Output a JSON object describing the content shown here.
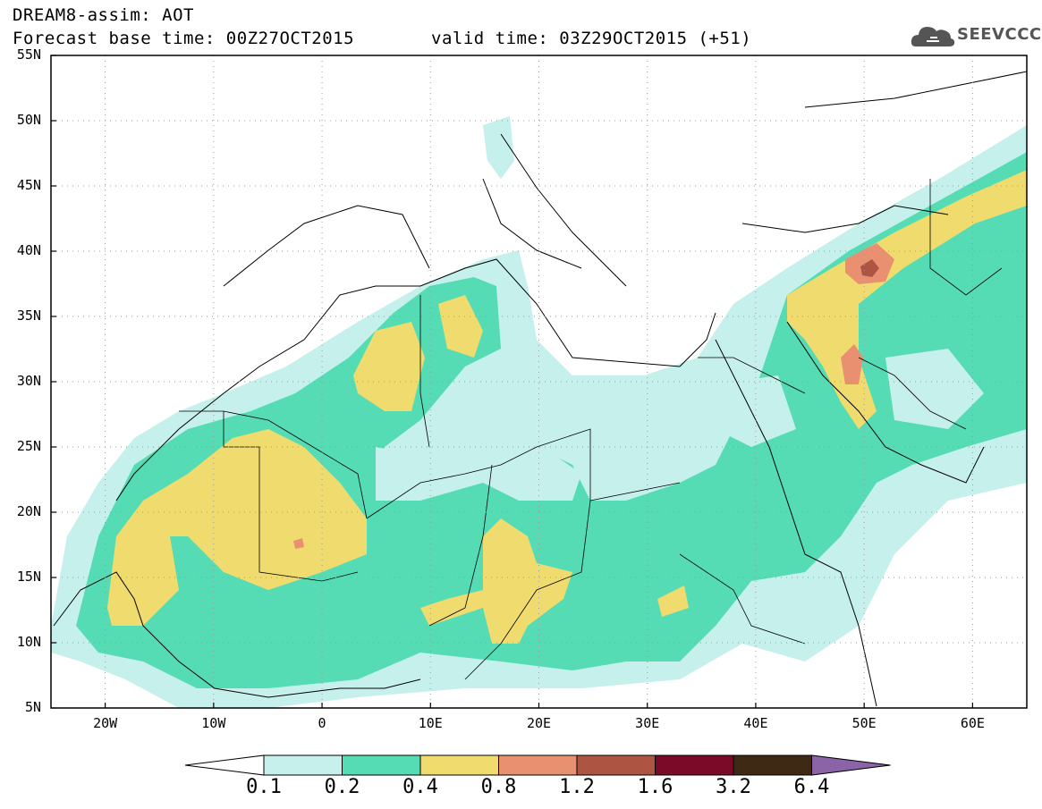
{
  "header": {
    "line1": "DREAM8-assim: AOT",
    "line2": "Forecast base time: 00Z27OCT2015",
    "valid": "valid time: 03Z29OCT2015 (+51)"
  },
  "logo": {
    "name": "SEEVCCC",
    "icon": "cloud-icon"
  },
  "map": {
    "lon_range": [
      -25,
      65
    ],
    "lat_range": [
      5,
      55
    ],
    "lat_labels": [
      "55N",
      "50N",
      "45N",
      "40N",
      "35N",
      "30N",
      "25N",
      "20N",
      "15N",
      "10N",
      "5N"
    ],
    "lon_labels": [
      "20W",
      "10W",
      "0",
      "10E",
      "20E",
      "30E",
      "40E",
      "50E",
      "60E"
    ],
    "grid": true
  },
  "colorbar": {
    "labels": [
      "0.1",
      "0.2",
      "0.4",
      "0.8",
      "1.2",
      "1.6",
      "3.2",
      "6.4"
    ],
    "colors": [
      "#ffffff",
      "#c6f0ec",
      "#56dcb4",
      "#f0dc6e",
      "#e89070",
      "#ae5442",
      "#7a0a28",
      "#3e2a14",
      "#8a64a6"
    ]
  }
}
